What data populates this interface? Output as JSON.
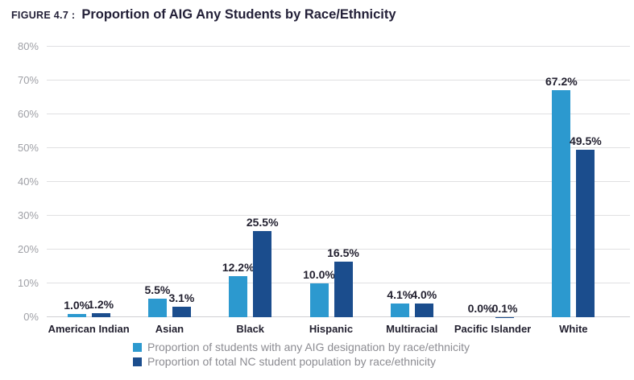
{
  "figure": {
    "label": "FIGURE 4.7 :",
    "title": "Proportion of AIG Any Students by Race/Ethnicity"
  },
  "chart_data": {
    "type": "bar",
    "title": "Proportion of AIG Any Students by Race/Ethnicity",
    "categories": [
      "American Indian",
      "Asian",
      "Black",
      "Hispanic",
      "Multiracial",
      "Pacific Islander",
      "White"
    ],
    "series": [
      {
        "name": "Proportion of students with any AIG designation by race/ethnicity",
        "color": "#2C99CF",
        "values": [
          1.0,
          5.5,
          12.2,
          10.0,
          4.1,
          0.0,
          67.2
        ],
        "value_labels": [
          "1.0%",
          "5.5%",
          "12.2%",
          "10.0%",
          "4.1%",
          "0.0%",
          "67.2%"
        ]
      },
      {
        "name": "Proportion of total NC student population by race/ethnicity",
        "color": "#1B4D8D",
        "values": [
          1.2,
          3.1,
          25.5,
          16.5,
          4.0,
          0.1,
          49.5
        ],
        "value_labels": [
          "1.2%",
          "3.1%",
          "25.5%",
          "16.5%",
          "4.0%",
          "0.1%",
          "49.5%"
        ]
      }
    ],
    "xlabel": "",
    "ylabel": "",
    "ylim": [
      0,
      80
    ],
    "ytick_step": 10,
    "yticks": [
      "0%",
      "10%",
      "20%",
      "30%",
      "40%",
      "50%",
      "60%",
      "70%",
      "80%"
    ],
    "grid": true,
    "legend_position": "bottom"
  }
}
